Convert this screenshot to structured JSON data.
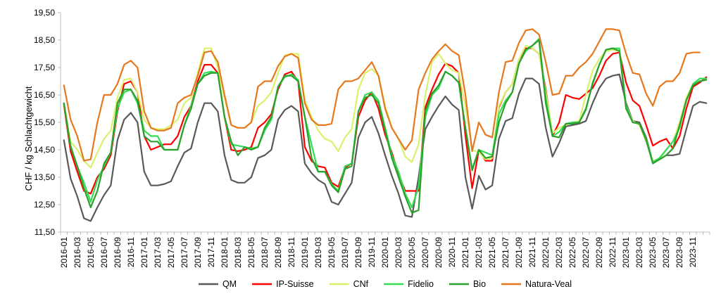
{
  "chart_data": {
    "type": "line",
    "title": "",
    "xlabel": "",
    "ylabel": "CHF / kg Schlachtgewicht",
    "ylim": [
      11.5,
      19.5
    ],
    "yticks": [
      "11,50",
      "12,50",
      "13,50",
      "14,50",
      "15,50",
      "16,50",
      "17,50",
      "18,50",
      "19,50"
    ],
    "ytick_values": [
      11.5,
      12.5,
      13.5,
      14.5,
      15.5,
      16.5,
      17.5,
      18.5,
      19.5
    ],
    "grid": false,
    "legend_position": "bottom",
    "x_start": "2016-01",
    "x_tick_labels": [
      "2016-01",
      "2016-03",
      "2016-05",
      "2016-07",
      "2016-09",
      "2016-11",
      "2017-01",
      "2017-03",
      "2017-05",
      "2017-07",
      "2017-09",
      "2017-11",
      "2018-01",
      "2018-03",
      "2018-05",
      "2018-07",
      "2018-09",
      "2018-11",
      "2019-01",
      "2019-03",
      "2019-05",
      "2019-07",
      "2019-09",
      "2019-11",
      "2020-01",
      "2020-03",
      "2020-05",
      "2020-07",
      "2020-09",
      "2020-11",
      "2021-01",
      "2021-03",
      "2021-05",
      "2021-07",
      "2021-09",
      "2021-11",
      "2022-01",
      "2022-03",
      "2022-05",
      "2022-07",
      "2022-09",
      "2022-11",
      "2023-01",
      "2023-03",
      "2023-05",
      "2023-07",
      "2023-09",
      "2023-11"
    ],
    "series": [
      {
        "name": "QM",
        "color": "#595959",
        "values": [
          14.85,
          13.45,
          12.8,
          12.0,
          11.9,
          12.4,
          12.85,
          13.2,
          14.85,
          15.6,
          15.85,
          15.5,
          13.7,
          13.2,
          13.2,
          13.25,
          13.35,
          13.9,
          14.4,
          14.55,
          15.5,
          16.2,
          16.2,
          15.9,
          14.3,
          13.4,
          13.3,
          13.3,
          13.5,
          14.2,
          14.3,
          14.5,
          15.6,
          15.95,
          16.1,
          15.9,
          14.0,
          13.65,
          13.4,
          13.25,
          12.6,
          12.5,
          12.9,
          13.3,
          14.95,
          15.5,
          15.7,
          15.1,
          14.3,
          13.55,
          12.9,
          12.1,
          12.05,
          13.5,
          15.25,
          15.7,
          16.1,
          16.45,
          16.15,
          15.95,
          13.5,
          12.35,
          13.55,
          13.05,
          13.2,
          14.9,
          15.55,
          15.65,
          16.55,
          17.1,
          17.1,
          16.9,
          15.3,
          14.25,
          14.75,
          15.35,
          15.4,
          15.45,
          15.55,
          16.2,
          16.75,
          17.1,
          17.2,
          17.25,
          16.2,
          15.55,
          15.5,
          14.95,
          14.05,
          14.15,
          14.3,
          14.3,
          14.35,
          15.25,
          16.1,
          16.25,
          16.2
        ]
      },
      {
        "name": "IP-Suisse",
        "color": "#ff0000",
        "values": [
          16.15,
          14.45,
          13.7,
          13.0,
          12.9,
          13.5,
          13.8,
          14.3,
          15.9,
          16.9,
          17.0,
          16.6,
          15.0,
          14.5,
          14.6,
          14.7,
          14.7,
          15.0,
          15.7,
          16.1,
          17.0,
          17.6,
          17.6,
          17.3,
          15.7,
          14.5,
          14.45,
          14.5,
          14.6,
          15.3,
          15.5,
          15.8,
          16.7,
          17.25,
          17.35,
          17.0,
          14.6,
          14.1,
          13.9,
          13.85,
          13.3,
          13.15,
          13.85,
          14.0,
          15.7,
          16.3,
          16.6,
          16.0,
          15.05,
          14.4,
          13.6,
          13.0,
          13.0,
          13.0,
          16.05,
          16.7,
          17.25,
          17.65,
          17.55,
          17.3,
          15.0,
          13.1,
          14.5,
          14.1,
          14.1,
          16.05,
          16.6,
          16.9,
          17.8,
          18.2,
          18.2,
          18.0,
          16.7,
          15.0,
          15.5,
          16.5,
          16.4,
          16.35,
          16.55,
          16.75,
          17.2,
          17.75,
          18.0,
          18.05,
          16.95,
          16.3,
          16.1,
          15.4,
          14.65,
          14.8,
          14.9,
          14.55,
          15.0,
          16.0,
          16.8,
          16.95,
          17.15
        ]
      },
      {
        "name": "CNf",
        "color": "#d9f26b",
        "values": [
          16.2,
          14.8,
          14.5,
          14.1,
          13.85,
          14.4,
          14.9,
          15.2,
          16.4,
          17.05,
          17.1,
          16.6,
          15.6,
          15.3,
          15.25,
          15.25,
          15.4,
          15.6,
          16.2,
          16.4,
          17.3,
          18.2,
          18.2,
          17.5,
          16.4,
          15.4,
          15.3,
          15.3,
          15.5,
          16.1,
          16.3,
          16.6,
          17.3,
          17.95,
          18.0,
          18.0,
          16.3,
          15.7,
          15.2,
          14.9,
          14.8,
          14.45,
          14.95,
          15.25,
          16.7,
          17.3,
          17.45,
          17.2,
          16.1,
          15.3,
          14.9,
          14.25,
          14.05,
          14.7,
          16.5,
          17.7,
          18.0,
          17.65,
          17.4,
          17.3,
          16.1,
          14.5,
          14.4,
          14.15,
          14.2,
          16.1,
          16.6,
          16.9,
          17.8,
          18.3,
          18.2,
          18.0,
          16.6,
          15.1,
          15.3,
          15.4,
          15.5,
          15.55,
          16.5,
          17.4,
          17.8,
          18.1,
          18.15,
          18.1,
          16.1,
          15.55,
          15.4,
          14.8,
          14.1,
          14.15,
          14.5,
          14.8,
          15.5,
          16.4,
          16.9,
          17.0,
          17.05
        ]
      },
      {
        "name": "Fidelio",
        "color": "#33dd55",
        "values": [
          16.2,
          14.65,
          13.9,
          13.3,
          12.6,
          13.4,
          13.9,
          14.4,
          16.0,
          16.6,
          16.7,
          16.2,
          15.2,
          15.0,
          15.0,
          14.5,
          14.5,
          14.5,
          15.4,
          16.1,
          16.9,
          17.3,
          17.35,
          17.3,
          15.7,
          14.7,
          14.65,
          14.6,
          14.55,
          14.6,
          15.2,
          15.6,
          16.8,
          17.15,
          17.25,
          17.05,
          15.7,
          14.7,
          13.7,
          13.7,
          13.25,
          13.0,
          13.9,
          14.0,
          15.9,
          16.5,
          16.6,
          16.3,
          15.3,
          14.3,
          13.7,
          12.9,
          12.4,
          13.15,
          15.7,
          16.5,
          16.75,
          17.35,
          17.2,
          16.95,
          15.3,
          13.8,
          14.5,
          14.4,
          14.3,
          15.8,
          16.3,
          16.6,
          17.65,
          18.1,
          18.3,
          18.55,
          16.4,
          15.0,
          15.15,
          15.45,
          15.5,
          15.5,
          15.95,
          16.95,
          17.6,
          18.15,
          18.2,
          18.2,
          16.1,
          15.5,
          15.45,
          14.9,
          14.05,
          14.2,
          14.5,
          14.8,
          15.3,
          16.3,
          16.9,
          17.1,
          17.1
        ]
      },
      {
        "name": "Bio",
        "color": "#2ca02c",
        "values": [
          16.2,
          14.6,
          13.9,
          13.1,
          12.4,
          13.0,
          14.0,
          14.4,
          16.2,
          16.7,
          16.7,
          16.3,
          15.0,
          14.8,
          14.8,
          14.5,
          14.5,
          14.5,
          15.4,
          16.0,
          16.9,
          17.2,
          17.3,
          17.3,
          15.7,
          14.8,
          14.3,
          14.6,
          14.5,
          14.6,
          15.3,
          15.7,
          16.8,
          17.2,
          17.2,
          17.0,
          15.7,
          14.2,
          13.7,
          13.7,
          13.2,
          12.95,
          13.8,
          13.9,
          15.9,
          16.4,
          16.5,
          16.2,
          15.2,
          14.2,
          13.5,
          12.8,
          12.2,
          12.3,
          15.9,
          16.55,
          16.85,
          17.35,
          17.2,
          16.95,
          15.3,
          13.75,
          14.5,
          14.2,
          14.25,
          15.5,
          16.2,
          16.6,
          17.65,
          18.15,
          18.3,
          18.5,
          16.2,
          15.0,
          14.95,
          15.45,
          15.45,
          15.5,
          16.0,
          16.9,
          17.6,
          18.15,
          18.2,
          18.1,
          16.0,
          15.5,
          15.45,
          14.85,
          14.0,
          14.15,
          14.3,
          14.55,
          15.4,
          16.3,
          16.85,
          17.0,
          17.05
        ]
      },
      {
        "name": "Natura-Veal",
        "color": "#e6781e",
        "values": [
          16.85,
          15.6,
          15.0,
          14.1,
          14.15,
          15.5,
          16.5,
          16.5,
          16.9,
          17.6,
          17.75,
          17.5,
          15.9,
          15.3,
          15.2,
          15.2,
          15.3,
          16.2,
          16.4,
          16.5,
          17.2,
          18.05,
          18.1,
          17.7,
          16.5,
          15.4,
          15.3,
          15.3,
          15.5,
          16.8,
          17.0,
          17.0,
          17.55,
          17.9,
          18.0,
          17.85,
          16.2,
          15.6,
          15.4,
          15.4,
          15.45,
          16.7,
          17.0,
          17.0,
          17.1,
          17.4,
          17.7,
          17.2,
          16.0,
          15.3,
          14.9,
          14.5,
          14.85,
          16.7,
          17.3,
          17.8,
          18.1,
          18.35,
          18.1,
          17.95,
          16.5,
          14.45,
          15.5,
          15.05,
          14.95,
          16.6,
          17.7,
          17.75,
          18.4,
          18.85,
          18.9,
          18.7,
          17.7,
          16.5,
          16.55,
          17.2,
          17.2,
          17.5,
          17.7,
          18.0,
          18.45,
          18.9,
          18.9,
          18.85,
          18.0,
          17.3,
          17.25,
          16.55,
          16.1,
          16.8,
          17.0,
          17.0,
          17.3,
          18.0,
          18.05,
          18.05
        ]
      }
    ]
  }
}
